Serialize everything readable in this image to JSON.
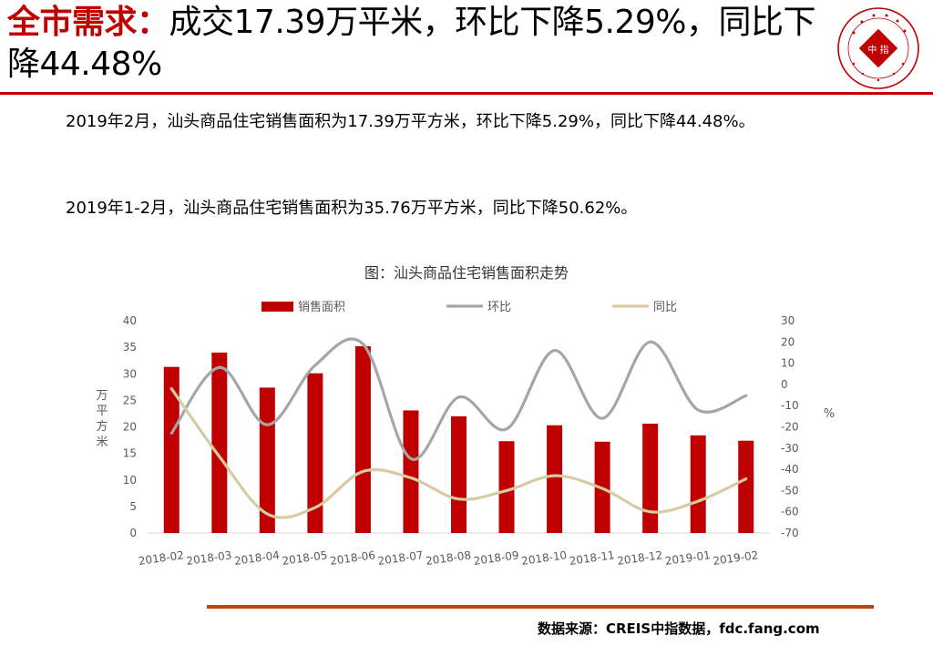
{
  "title": {
    "highlight": "全市需求：",
    "rest": "成交17.39万平米，环比下降5.29%，同比下降44.48%"
  },
  "paragraphs": {
    "p1": "2019年2月，汕头商品住宅销售面积为17.39万平方米，环比下降5.29%，同比下降44.48%。",
    "p2": "2019年1-2月，汕头商品住宅销售面积为35.76万平方米，同比下降50.62%。"
  },
  "logo": {
    "center_text": "中 指"
  },
  "source": "数据来源：CREIS中指数据，fdc.fang.com",
  "colors": {
    "brand_red": "#c00000",
    "bar": "#c00000",
    "mom_line": "#a6a6a6",
    "yoy_line": "#d6cba3",
    "rule_orange": "#c0470a"
  },
  "chart_data": {
    "type": "bar",
    "title": "图：汕头商品住宅销售面积走势",
    "categories": [
      "2018-02",
      "2018-03",
      "2018-04",
      "2018-05",
      "2018-06",
      "2018-07",
      "2018-08",
      "2018-09",
      "2018-10",
      "2018-11",
      "2018-12",
      "2019-01",
      "2019-02"
    ],
    "series": [
      {
        "name": "销售面积",
        "type": "bar",
        "axis": "left",
        "values": [
          31.3,
          34.0,
          27.4,
          30.1,
          35.2,
          23.1,
          22.0,
          17.3,
          20.3,
          17.2,
          20.6,
          18.4,
          17.39
        ]
      },
      {
        "name": "环比",
        "type": "line",
        "axis": "right",
        "values": [
          -23,
          8,
          -19,
          9,
          19,
          -35,
          -6,
          -21,
          16,
          -16,
          20,
          -12,
          -5.29
        ]
      },
      {
        "name": "同比",
        "type": "line",
        "axis": "right",
        "values": [
          -2,
          -34,
          -61,
          -58,
          -41,
          -44,
          -54,
          -50,
          -43,
          -49,
          -60,
          -55,
          -44.48
        ]
      }
    ],
    "ylabel": "万平方米",
    "y2label": "%",
    "ylim": [
      0,
      40
    ],
    "y2lim": [
      -70,
      30
    ],
    "yticks": [
      "0",
      "5",
      "10",
      "15",
      "20",
      "25",
      "30",
      "35",
      "40"
    ],
    "y2ticks": [
      "-70",
      "-60",
      "-50",
      "-40",
      "-30",
      "-20",
      "-10",
      "0",
      "10",
      "20",
      "30"
    ],
    "legend": "top",
    "grid": false
  }
}
